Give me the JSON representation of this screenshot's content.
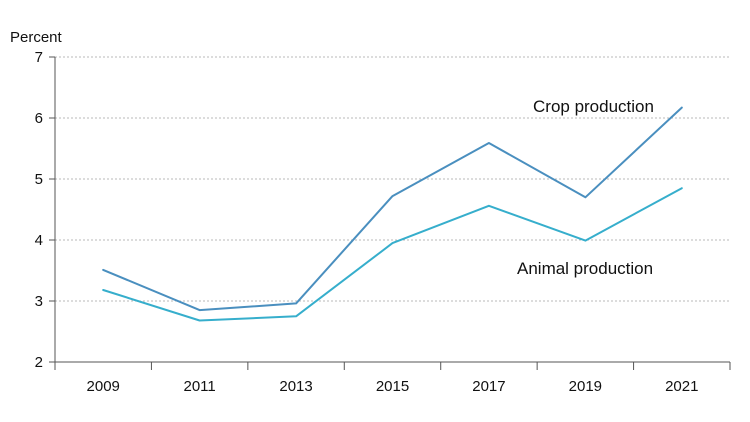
{
  "chart_data": {
    "type": "line",
    "title": "",
    "xlabel": "",
    "ylabel": "Percent",
    "ylim": [
      2,
      7
    ],
    "yticks": [
      "2",
      "3",
      "4",
      "5",
      "6",
      "7"
    ],
    "x": [
      "2009",
      "2010",
      "2011",
      "2012",
      "2013",
      "2014",
      "2015",
      "2016",
      "2017",
      "2018",
      "2019",
      "2020",
      "2021"
    ],
    "xtick_labels": [
      "2009",
      "2011",
      "2013",
      "2015",
      "2017",
      "2019",
      "2021"
    ],
    "grid": "horizontal dotted",
    "series": [
      {
        "name": "Crop production",
        "color": "#4a8fbf",
        "values": [
          3.51,
          null,
          2.85,
          null,
          2.96,
          null,
          4.72,
          null,
          5.59,
          null,
          4.7,
          null,
          6.17
        ]
      },
      {
        "name": "Animal production",
        "color": "#36aecc",
        "values": [
          3.18,
          null,
          2.68,
          null,
          2.75,
          null,
          3.95,
          null,
          4.56,
          null,
          3.99,
          null,
          4.85
        ]
      }
    ]
  }
}
